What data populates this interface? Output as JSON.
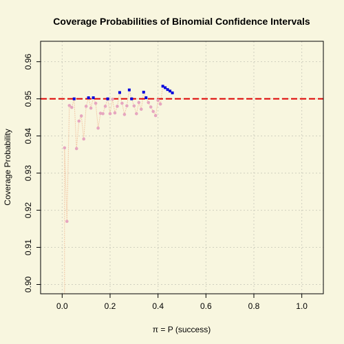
{
  "chart_data": {
    "type": "scatter",
    "title": "Coverage Probabilities of Binomial Confidence Intervals",
    "xlabel": "π = P (success)",
    "ylabel": "Coverage Probability",
    "xlim": [
      -0.09,
      1.09
    ],
    "ylim": [
      0.8975,
      0.9655
    ],
    "xticks": [
      0.0,
      0.2,
      0.4,
      0.6,
      0.8,
      1.0
    ],
    "xtick_labels": [
      "0.0",
      "0.2",
      "0.4",
      "0.6",
      "0.8",
      "1.0"
    ],
    "yticks": [
      0.9,
      0.91,
      0.92,
      0.93,
      0.94,
      0.95,
      0.96
    ],
    "ytick_labels": [
      "0.90",
      "0.91",
      "0.92",
      "0.93",
      "0.94",
      "0.95",
      "0.96"
    ],
    "grid": true,
    "reference_line": {
      "y": 0.95,
      "color": "#dd0000",
      "style": "dashed"
    },
    "colors": {
      "background": "#f8f6df",
      "below": "#e6a6bf",
      "above": "#0000dd",
      "connector": "#f2c9a8",
      "grid": "#cfcfbf"
    },
    "series": [
      {
        "values": [
          [
            0.01,
            0.9368
          ],
          [
            0.02,
            0.917
          ],
          [
            0.03,
            0.9482
          ],
          [
            0.04,
            0.9477
          ],
          [
            0.05,
            0.95
          ],
          [
            0.06,
            0.9366
          ],
          [
            0.07,
            0.944
          ],
          [
            0.08,
            0.9454
          ],
          [
            0.09,
            0.9392
          ],
          [
            0.1,
            0.948
          ],
          [
            0.11,
            0.9503
          ],
          [
            0.12,
            0.9475
          ],
          [
            0.13,
            0.9503
          ],
          [
            0.14,
            0.9488
          ],
          [
            0.15,
            0.9421
          ],
          [
            0.16,
            0.9461
          ],
          [
            0.17,
            0.946
          ],
          [
            0.18,
            0.948
          ],
          [
            0.19,
            0.95
          ],
          [
            0.2,
            0.946
          ],
          [
            0.21,
            0.9499
          ],
          [
            0.22,
            0.9462
          ],
          [
            0.23,
            0.948
          ],
          [
            0.24,
            0.9517
          ],
          [
            0.25,
            0.9488
          ],
          [
            0.26,
            0.9458
          ],
          [
            0.27,
            0.9481
          ],
          [
            0.28,
            0.9524
          ],
          [
            0.29,
            0.95
          ],
          [
            0.3,
            0.9481
          ],
          [
            0.31,
            0.946
          ],
          [
            0.32,
            0.949
          ],
          [
            0.33,
            0.9472
          ],
          [
            0.34,
            0.9518
          ],
          [
            0.35,
            0.9503
          ],
          [
            0.36,
            0.949
          ],
          [
            0.37,
            0.9478
          ],
          [
            0.38,
            0.9466
          ],
          [
            0.39,
            0.9455
          ],
          [
            0.4,
            0.9496
          ],
          [
            0.41,
            0.9486
          ],
          [
            0.42,
            0.9534
          ],
          [
            0.43,
            0.953
          ],
          [
            0.44,
            0.9525
          ],
          [
            0.45,
            0.9521
          ],
          [
            0.46,
            0.9516
          ]
        ]
      }
    ]
  }
}
